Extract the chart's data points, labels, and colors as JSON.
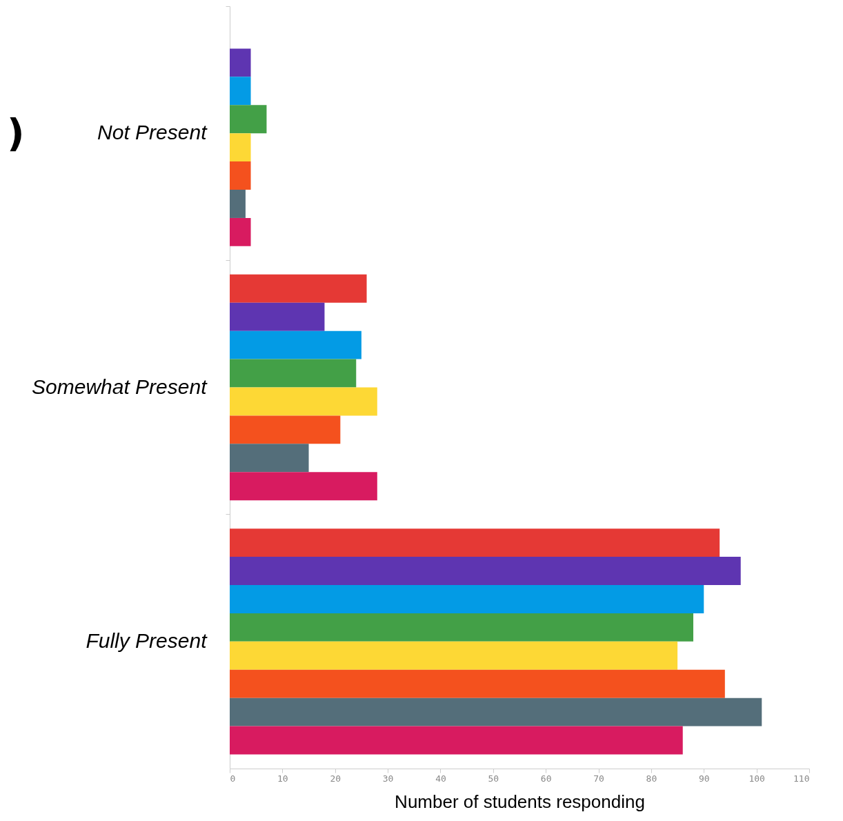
{
  "chart_data": {
    "type": "bar",
    "orientation": "horizontal",
    "xlabel": "Number of students responding",
    "annotations": [
      ")"
    ],
    "categories": [
      "Not Present",
      "Somewhat Present",
      "Fully Present"
    ],
    "series": [
      {
        "color": "#e53935",
        "values": [
          null,
          26,
          93
        ]
      },
      {
        "color": "#5e35b1",
        "values": [
          4,
          18,
          97
        ]
      },
      {
        "color": "#039be5",
        "values": [
          4,
          25,
          90
        ]
      },
      {
        "color": "#43a047",
        "values": [
          7,
          24,
          88
        ]
      },
      {
        "color": "#fdd835",
        "values": [
          4,
          28,
          85
        ]
      },
      {
        "color": "#f4511e",
        "values": [
          4,
          21,
          94
        ]
      },
      {
        "color": "#546e7a",
        "values": [
          3,
          15,
          101
        ]
      },
      {
        "color": "#d81b60",
        "values": [
          4,
          28,
          86
        ]
      }
    ],
    "xlim": [
      0,
      110
    ],
    "xticks": [
      0,
      10,
      20,
      30,
      40,
      50,
      60,
      70,
      80,
      90,
      100,
      110
    ],
    "grid": false,
    "legend": false
  }
}
